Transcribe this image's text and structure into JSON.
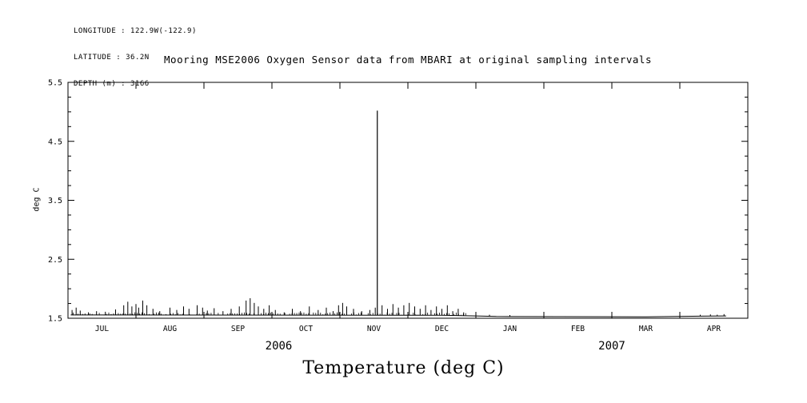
{
  "header": {
    "longitude": "LONGITUDE : 122.9W(-122.9)",
    "latitude": "LATITUDE : 36.2N",
    "depth": "DEPTH (m) : 3166"
  },
  "chart_data": {
    "type": "line",
    "title": "Mooring MSE2006 Oxygen Sensor data from MBARI at original sampling intervals",
    "ylabel": "deg C",
    "xlabel": "Temperature (deg C)",
    "ylim": [
      1.5,
      5.5
    ],
    "yticks": [
      1.5,
      2.5,
      3.5,
      4.5,
      5.5
    ],
    "y_minor_step": 0.25,
    "months": [
      "JUL",
      "AUG",
      "SEP",
      "OCT",
      "NOV",
      "DEC",
      "JAN",
      "FEB",
      "MAR",
      "APR"
    ],
    "year_labels": [
      {
        "label": "2006",
        "x": 0.31
      },
      {
        "label": "2007",
        "x": 0.8
      }
    ],
    "line_color": "#000000",
    "grid": false,
    "baseline_points": [
      [
        0.004,
        1.555
      ],
      [
        0.55,
        1.55
      ],
      [
        0.6,
        1.54
      ],
      [
        0.63,
        1.53
      ],
      [
        0.85,
        1.525
      ],
      [
        0.93,
        1.535
      ],
      [
        0.968,
        1.54
      ]
    ],
    "noise_band": {
      "x_start": 0.004,
      "x_end": 0.585,
      "base": 1.55,
      "max": 1.6,
      "step": 0.0035
    },
    "spikes": [
      [
        0.006,
        1.64
      ],
      [
        0.012,
        1.68
      ],
      [
        0.018,
        1.63
      ],
      [
        0.03,
        1.6
      ],
      [
        0.042,
        1.62
      ],
      [
        0.055,
        1.61
      ],
      [
        0.07,
        1.65
      ],
      [
        0.082,
        1.72
      ],
      [
        0.088,
        1.78
      ],
      [
        0.094,
        1.7
      ],
      [
        0.1,
        1.74
      ],
      [
        0.104,
        1.68
      ],
      [
        0.11,
        1.8
      ],
      [
        0.116,
        1.72
      ],
      [
        0.125,
        1.66
      ],
      [
        0.135,
        1.62
      ],
      [
        0.15,
        1.68
      ],
      [
        0.16,
        1.64
      ],
      [
        0.17,
        1.7
      ],
      [
        0.178,
        1.66
      ],
      [
        0.19,
        1.72
      ],
      [
        0.198,
        1.68
      ],
      [
        0.205,
        1.63
      ],
      [
        0.215,
        1.67
      ],
      [
        0.228,
        1.62
      ],
      [
        0.24,
        1.66
      ],
      [
        0.252,
        1.7
      ],
      [
        0.262,
        1.8
      ],
      [
        0.268,
        1.84
      ],
      [
        0.274,
        1.76
      ],
      [
        0.28,
        1.7
      ],
      [
        0.288,
        1.66
      ],
      [
        0.296,
        1.72
      ],
      [
        0.305,
        1.64
      ],
      [
        0.318,
        1.6
      ],
      [
        0.33,
        1.66
      ],
      [
        0.342,
        1.62
      ],
      [
        0.355,
        1.7
      ],
      [
        0.368,
        1.64
      ],
      [
        0.38,
        1.68
      ],
      [
        0.39,
        1.62
      ],
      [
        0.398,
        1.72
      ],
      [
        0.404,
        1.76
      ],
      [
        0.41,
        1.7
      ],
      [
        0.42,
        1.66
      ],
      [
        0.432,
        1.62
      ],
      [
        0.444,
        1.64
      ],
      [
        0.452,
        1.68
      ],
      [
        0.462,
        1.72
      ],
      [
        0.47,
        1.66
      ],
      [
        0.478,
        1.74
      ],
      [
        0.486,
        1.68
      ],
      [
        0.494,
        1.72
      ],
      [
        0.502,
        1.76
      ],
      [
        0.51,
        1.7
      ],
      [
        0.518,
        1.66
      ],
      [
        0.526,
        1.72
      ],
      [
        0.534,
        1.64
      ],
      [
        0.542,
        1.7
      ],
      [
        0.55,
        1.66
      ],
      [
        0.558,
        1.72
      ],
      [
        0.566,
        1.62
      ],
      [
        0.574,
        1.66
      ],
      [
        0.582,
        1.6
      ],
      [
        0.6,
        1.57
      ],
      [
        0.62,
        1.56
      ],
      [
        0.65,
        1.555
      ],
      [
        0.7,
        1.55
      ],
      [
        0.93,
        1.56
      ],
      [
        0.945,
        1.565
      ],
      [
        0.955,
        1.56
      ],
      [
        0.965,
        1.57
      ]
    ],
    "big_spike": [
      0.455,
      5.02
    ]
  }
}
